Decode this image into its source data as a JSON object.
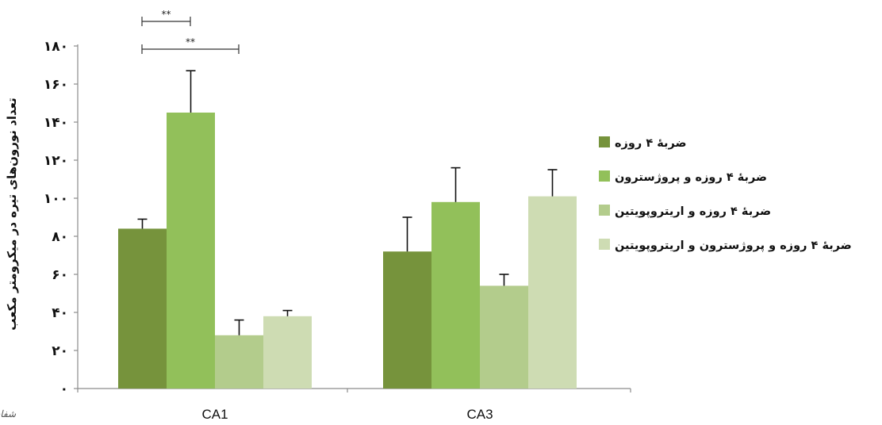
{
  "chart_data": {
    "type": "bar",
    "title": "",
    "xlabel": "",
    "ylabel": "تعداد نورون‌های تیره در میکرومتر مکعب",
    "ylim": [
      0,
      180
    ],
    "yticks": [
      {
        "value": 0,
        "label": "۰"
      },
      {
        "value": 20,
        "label": "۲۰"
      },
      {
        "value": 40,
        "label": "۴۰"
      },
      {
        "value": 60,
        "label": "۶۰"
      },
      {
        "value": 80,
        "label": "۸۰"
      },
      {
        "value": 100,
        "label": "۱۰۰"
      },
      {
        "value": 120,
        "label": "۱۲۰"
      },
      {
        "value": 140,
        "label": "۱۴۰"
      },
      {
        "value": 160,
        "label": "۱۶۰"
      },
      {
        "value": 180,
        "label": "۱۸۰"
      }
    ],
    "categories": [
      "CA1",
      "CA3"
    ],
    "series": [
      {
        "name": "ضربهٔ ۴ روزه",
        "color": "#76933c",
        "values": [
          84,
          72
        ],
        "errors": [
          5,
          18
        ]
      },
      {
        "name": "ضربهٔ ۴ روزه و پروژسترون",
        "color": "#92c05a",
        "values": [
          145,
          98
        ],
        "errors": [
          22,
          18
        ]
      },
      {
        "name": "ضربهٔ ۴ روزه و اریتروپویتین",
        "color": "#b3cc8c",
        "values": [
          28,
          54
        ],
        "errors": [
          8,
          6
        ]
      },
      {
        "name": "ضربهٔ ۴ روزه و پروژسترون و اریتروپویتین",
        "color": "#cedcb3",
        "values": [
          38,
          101
        ],
        "errors": [
          3,
          14
        ]
      }
    ],
    "significance": [
      {
        "category": "CA1",
        "from_series": 0,
        "to_series": 1,
        "label": "**"
      },
      {
        "category": "CA1",
        "from_series": 0,
        "to_series": 2,
        "label": "**"
      }
    ],
    "legend_position": "right",
    "grid": false
  },
  "watermark": {
    "text": "شفای ختم"
  }
}
